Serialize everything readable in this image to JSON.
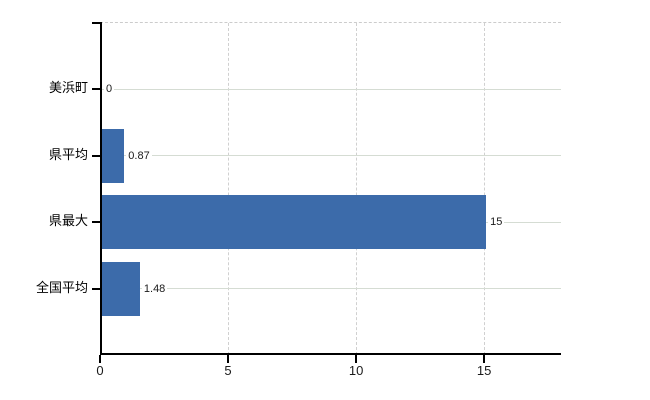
{
  "chart_data": {
    "type": "bar",
    "orientation": "horizontal",
    "title": "",
    "categories": [
      "美浜町",
      "県平均",
      "県最大",
      "全国平均"
    ],
    "values": [
      0,
      0.87,
      15,
      1.48
    ],
    "value_labels": [
      "0",
      "0.87",
      "15",
      "1.48"
    ],
    "x_ticks": [
      0,
      5,
      10,
      15
    ],
    "x_tick_labels": [
      "0",
      "5",
      "10",
      "15"
    ],
    "xlim": [
      0,
      18
    ],
    "ylabel": "",
    "xlabel": "",
    "grid": true,
    "legend": false,
    "gridline_vertical_ticks": [
      5,
      10,
      15
    ],
    "colors": {
      "bar": "#3c6baa",
      "axis": "#000000",
      "h_gridline": "#d5dcd3",
      "v_gridline": "#d0d0d0",
      "plot_top_border": "#cccccc",
      "background": "#ffffff",
      "text": "#1a1a1a"
    }
  }
}
